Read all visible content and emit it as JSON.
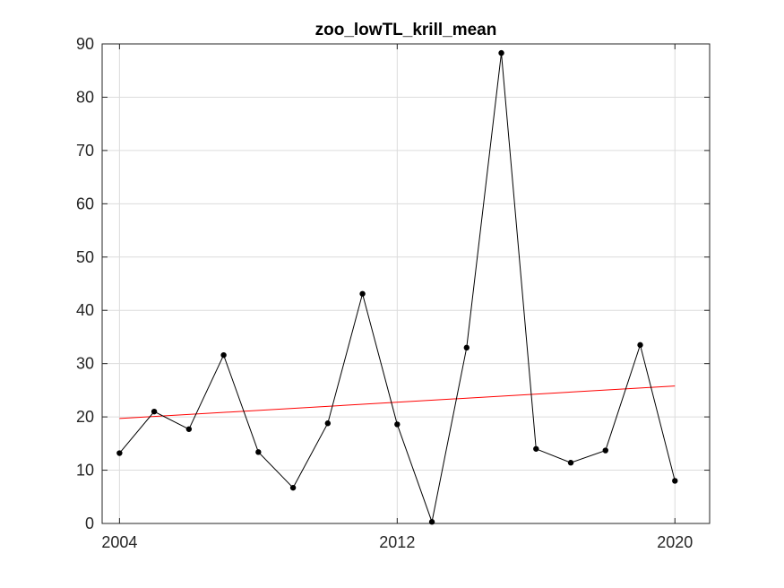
{
  "chart_data": {
    "type": "line",
    "title": "zoo_lowTL_krill_mean",
    "xlabel": "",
    "ylabel": "",
    "xlim": [
      2003.5,
      2021
    ],
    "ylim": [
      0,
      90
    ],
    "x_ticks": [
      2004,
      2012,
      2020
    ],
    "y_ticks": [
      0,
      10,
      20,
      30,
      40,
      50,
      60,
      70,
      80,
      90
    ],
    "grid": true,
    "series": [
      {
        "x": [
          2004,
          2005,
          2006,
          2007,
          2008,
          2009,
          2010,
          2011,
          2012,
          2013,
          2014,
          2015,
          2016,
          2017,
          2018,
          2019,
          2020
        ],
        "values": [
          13.2,
          21.0,
          17.7,
          31.6,
          13.4,
          6.7,
          18.8,
          43.1,
          18.6,
          0.3,
          33.0,
          88.3,
          14.0,
          11.4,
          13.7,
          33.5,
          8.0
        ],
        "color": "#000000",
        "marker": "circle"
      }
    ],
    "trend": {
      "x": [
        2004,
        2020
      ],
      "values": [
        19.7,
        25.8
      ],
      "color": "#ff0000"
    }
  }
}
